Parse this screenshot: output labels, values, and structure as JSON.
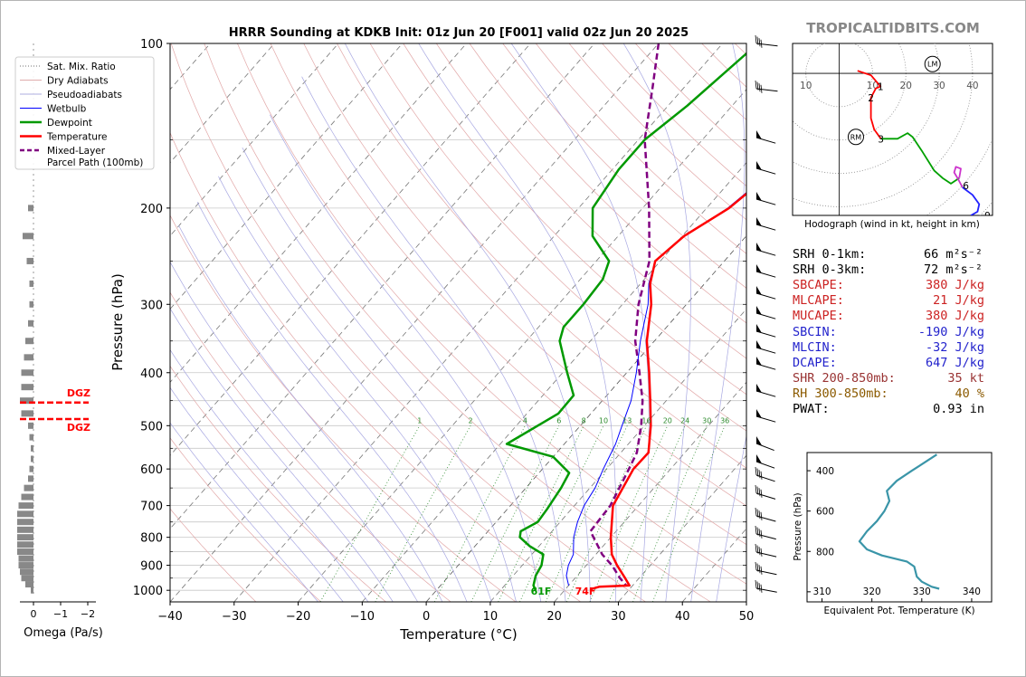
{
  "header": {
    "title": "HRRR Sounding at KDKB Init: 01z Jun 20 [F001] valid 02z Jun 20 2025",
    "brand": "TROPICALTIDBITS.COM"
  },
  "colors": {
    "temperature": "#ff0000",
    "dewpoint": "#009900",
    "wetbulb": "#0000ff",
    "parcel": "#800080",
    "dgz": "#ff0000",
    "theta_e": "#3a95a8",
    "brand": "#888888",
    "mixing_ratio": "#2e8b2e",
    "dry_adiabat": "#cc6666",
    "moist_adiabat": "#6666cc"
  },
  "legend": {
    "items": [
      {
        "label": "Sat. Mix. Ratio",
        "style": "dotted",
        "color": "#707070"
      },
      {
        "label": "Dry Adiabats",
        "style": "solid-thin",
        "color": "#d59090"
      },
      {
        "label": "Pseudoadiabats",
        "style": "solid-thin",
        "color": "#9090d5"
      },
      {
        "label": "Wetbulb",
        "style": "solid",
        "color": "#0000ff"
      },
      {
        "label": "Dewpoint",
        "style": "solid-thick",
        "color": "#009900"
      },
      {
        "label": "Temperature",
        "style": "solid-thick",
        "color": "#ff0000"
      },
      {
        "label": "Mixed-Layer",
        "label2": "Parcel Path (100mb)",
        "style": "dashed",
        "color": "#800080"
      }
    ]
  },
  "surface": {
    "dewpoint_label": "61F",
    "temperature_label": "74F"
  },
  "dgz": {
    "label": "DGZ",
    "top_p": 440,
    "bottom_p": 490
  },
  "skewt": {
    "xlabel": "Temperature (°C)",
    "ylabel": "Pressure (hPa)",
    "x_ticks": [
      -40,
      -30,
      -20,
      -10,
      0,
      10,
      20,
      30,
      40,
      50
    ],
    "y_ticks": [
      100,
      200,
      300,
      400,
      500,
      600,
      700,
      800,
      900,
      1000
    ],
    "mixing_ratio_labels": [
      "1",
      "2",
      "4",
      "6",
      "8",
      "10",
      "13",
      "16",
      "20",
      "24",
      "30",
      "36"
    ]
  },
  "omega": {
    "xlabel": "Omega (Pa/s)",
    "ticks": [
      "0",
      "−1",
      "−2"
    ]
  },
  "hodograph": {
    "caption": "Hodograph (wind in kt, height in km)",
    "ring_labels": [
      "10",
      "10",
      "20",
      "30",
      "40"
    ],
    "height_labels": [
      "1",
      "2",
      "3",
      "6",
      "9"
    ],
    "rm_label": "RM",
    "lm_label": "LM"
  },
  "params": [
    {
      "label": "SRH 0-1km:",
      "value": "66",
      "unit": "m²s⁻²",
      "color": "#000000"
    },
    {
      "label": "SRH 0-3km:",
      "value": "72",
      "unit": "m²s⁻²",
      "color": "#000000"
    },
    {
      "label": "SBCAPE:",
      "value": "380 J/kg",
      "unit": "",
      "color": "#cc2222"
    },
    {
      "label": "MLCAPE:",
      "value": "21 J/kg",
      "unit": "",
      "color": "#cc2222"
    },
    {
      "label": "MUCAPE:",
      "value": "380 J/kg",
      "unit": "",
      "color": "#cc2222"
    },
    {
      "label": "SBCIN:",
      "value": "-190 J/kg",
      "unit": "",
      "color": "#2222cc"
    },
    {
      "label": "MLCIN:",
      "value": "-32 J/kg",
      "unit": "",
      "color": "#2222cc"
    },
    {
      "label": "DCAPE:",
      "value": "647 J/kg",
      "unit": "",
      "color": "#2222cc"
    },
    {
      "label": "SHR 200-850mb:",
      "value": "35 kt",
      "unit": "",
      "color": "#993333"
    },
    {
      "label": "RH 300-850mb:",
      "value": "40 %",
      "unit": "",
      "color": "#8b5a00"
    },
    {
      "label": "PWAT:",
      "value": "0.93 in",
      "unit": "",
      "color": "#000000"
    }
  ],
  "theta_e_panel": {
    "xlabel": "Equivalent Pot. Temperature (K)",
    "ylabel": "Pressure (hPa)",
    "x_ticks": [
      "310",
      "320",
      "330",
      "340"
    ],
    "y_ticks": [
      "400",
      "600",
      "800"
    ]
  },
  "chart_data": [
    {
      "type": "line",
      "name": "skew-t",
      "x_axis": "temperature_c",
      "y_axis": "pressure_hpa",
      "xlim": [
        -40,
        50
      ],
      "ylim": [
        1050,
        100
      ],
      "y_scale": "log",
      "series": [
        {
          "name": "Temperature",
          "points": [
            [
              100,
              1.1
            ],
            [
              130,
              -1.8
            ],
            [
              150,
              -3.0
            ],
            [
              170,
              -4.5
            ],
            [
              200,
              -6.5
            ],
            [
              225,
              -9.7
            ],
            [
              250,
              -10.8
            ],
            [
              275,
              -8.5
            ],
            [
              300,
              -5.5
            ],
            [
              350,
              -1.2
            ],
            [
              400,
              3.5
            ],
            [
              450,
              7.5
            ],
            [
              500,
              11.0
            ],
            [
              560,
              14.3
            ],
            [
              600,
              14.2
            ],
            [
              700,
              16.0
            ],
            [
              800,
              20.0
            ],
            [
              860,
              22.5
            ],
            [
              900,
              24.8
            ],
            [
              950,
              27.8
            ],
            [
              980,
              29.5
            ],
            [
              985,
              25.0
            ],
            [
              995,
              24.0
            ]
          ]
        },
        {
          "name": "Dewpoint",
          "points": [
            [
              100,
              -24.5
            ],
            [
              130,
              -27.0
            ],
            [
              150,
              -29.0
            ],
            [
              170,
              -29.0
            ],
            [
              200,
              -27.8
            ],
            [
              225,
              -24.0
            ],
            [
              250,
              -18.0
            ],
            [
              270,
              -16.5
            ],
            [
              300,
              -16.1
            ],
            [
              330,
              -16.1
            ],
            [
              350,
              -14.8
            ],
            [
              400,
              -9.3
            ],
            [
              440,
              -5.2
            ],
            [
              475,
              -5.1
            ],
            [
              540,
              -9.0
            ],
            [
              570,
              0.0
            ],
            [
              610,
              4.7
            ],
            [
              650,
              5.5
            ],
            [
              710,
              6.2
            ],
            [
              750,
              6.5
            ],
            [
              780,
              5.1
            ],
            [
              800,
              5.8
            ],
            [
              830,
              8.5
            ],
            [
              860,
              11.8
            ],
            [
              900,
              13.0
            ],
            [
              940,
              13.5
            ],
            [
              980,
              14.5
            ],
            [
              1000,
              15.5
            ]
          ]
        },
        {
          "name": "Wetbulb",
          "points": [
            [
              100,
              1.0
            ],
            [
              130,
              -1.9
            ],
            [
              150,
              -3.2
            ],
            [
              170,
              -4.7
            ],
            [
              200,
              -6.7
            ],
            [
              225,
              -9.6
            ],
            [
              250,
              -10.8
            ],
            [
              275,
              -8.7
            ],
            [
              300,
              -6.0
            ],
            [
              350,
              -2.2
            ],
            [
              400,
              1.5
            ],
            [
              450,
              4.5
            ],
            [
              500,
              6.5
            ],
            [
              540,
              8.0
            ],
            [
              600,
              9.5
            ],
            [
              650,
              10.8
            ],
            [
              700,
              11.5
            ],
            [
              750,
              12.7
            ],
            [
              800,
              14.2
            ],
            [
              860,
              16.5
            ],
            [
              900,
              17.2
            ],
            [
              940,
              18.3
            ],
            [
              980,
              20.0
            ]
          ]
        },
        {
          "name": "Parcel",
          "points": [
            [
              100,
              -40.0
            ],
            [
              120,
              -35.0
            ],
            [
              150,
              -29.0
            ],
            [
              200,
              -19.0
            ],
            [
              250,
              -11.7
            ],
            [
              300,
              -7.5
            ],
            [
              350,
              -3.0
            ],
            [
              400,
              2.0
            ],
            [
              450,
              6.3
            ],
            [
              500,
              9.5
            ],
            [
              560,
              12.5
            ],
            [
              600,
              13.5
            ],
            [
              700,
              15.6
            ],
            [
              780,
              16.0
            ],
            [
              860,
              21.0
            ],
            [
              900,
              24.0
            ],
            [
              950,
              27.0
            ],
            [
              980,
              29.0
            ]
          ]
        }
      ]
    },
    {
      "type": "line",
      "name": "hodograph",
      "x_axis": "u_kt",
      "y_axis": "v_kt",
      "xlim": [
        -14,
        46
      ],
      "ylim": [
        -38,
        8
      ],
      "points": [
        [
          5.5,
          0.7
        ],
        [
          9.5,
          -0.5
        ],
        [
          12.4,
          -3.5
        ],
        [
          11.0,
          -4.0
        ],
        [
          9.5,
          -6.5
        ],
        [
          9.5,
          -12.0
        ],
        [
          10.5,
          -15.0
        ],
        [
          12.5,
          -17.5
        ],
        [
          17.5,
          -17.5
        ],
        [
          20.5,
          -16.0
        ],
        [
          22.0,
          -17.0
        ],
        [
          25.0,
          -21.0
        ],
        [
          28.5,
          -26.0
        ],
        [
          31.0,
          -28.0
        ],
        [
          33.5,
          -29.5
        ],
        [
          36.0,
          -28.0
        ],
        [
          36.5,
          -25.5
        ],
        [
          35.0,
          -25.0
        ],
        [
          34.5,
          -26.5
        ],
        [
          35.5,
          -28.0
        ],
        [
          37.0,
          -30.5
        ],
        [
          40.0,
          -32.5
        ],
        [
          42.0,
          -35.0
        ],
        [
          41.5,
          -37.0
        ],
        [
          39.5,
          -38.0
        ]
      ],
      "height_points": [
        [
          12.4,
          -3.5,
          "1"
        ],
        [
          9.5,
          -6.5,
          "2"
        ],
        [
          12.5,
          -17.5,
          "3"
        ],
        [
          38.0,
          -30.0,
          "6"
        ],
        [
          44.5,
          -38.0,
          "9"
        ]
      ],
      "rm": [
        5.0,
        -17.0
      ],
      "lm": [
        28.0,
        2.5
      ]
    },
    {
      "type": "bar",
      "name": "omega",
      "orientation": "horizontal",
      "xlim": [
        0.3,
        -2.2
      ],
      "bars": [
        [
          200,
          0.2
        ],
        [
          225,
          0.4
        ],
        [
          250,
          0.25
        ],
        [
          275,
          0.15
        ],
        [
          300,
          0.15
        ],
        [
          325,
          0.2
        ],
        [
          350,
          0.3
        ],
        [
          375,
          0.35
        ],
        [
          400,
          0.45
        ],
        [
          425,
          0.45
        ],
        [
          450,
          0.5
        ],
        [
          475,
          0.45
        ],
        [
          500,
          0.2
        ],
        [
          525,
          0.15
        ],
        [
          550,
          0.1
        ],
        [
          575,
          0.1
        ],
        [
          600,
          0.15
        ],
        [
          625,
          0.2
        ],
        [
          650,
          0.35
        ],
        [
          675,
          0.45
        ],
        [
          700,
          0.55
        ],
        [
          725,
          0.6
        ],
        [
          750,
          0.6
        ],
        [
          775,
          0.6
        ],
        [
          800,
          0.6
        ],
        [
          825,
          0.6
        ],
        [
          850,
          0.6
        ],
        [
          875,
          0.55
        ],
        [
          900,
          0.55
        ],
        [
          925,
          0.5
        ],
        [
          950,
          0.45
        ],
        [
          975,
          0.3
        ],
        [
          1000,
          0.1
        ]
      ]
    },
    {
      "type": "line",
      "name": "theta-e",
      "x_axis": "theta_e_k",
      "y_axis": "pressure_hpa",
      "xlim": [
        307,
        344
      ],
      "ylim": [
        1050,
        310
      ],
      "points": [
        [
          320,
          333.0
        ],
        [
          400,
          328.0
        ],
        [
          450,
          325.0
        ],
        [
          500,
          323.0
        ],
        [
          550,
          323.5
        ],
        [
          600,
          322.5
        ],
        [
          650,
          321.0
        ],
        [
          700,
          319.0
        ],
        [
          750,
          317.5
        ],
        [
          790,
          319.0
        ],
        [
          820,
          322.0
        ],
        [
          850,
          327.0
        ],
        [
          875,
          328.5
        ],
        [
          925,
          329.0
        ],
        [
          950,
          330.0
        ],
        [
          975,
          332.0
        ],
        [
          985,
          333.5
        ]
      ]
    }
  ]
}
